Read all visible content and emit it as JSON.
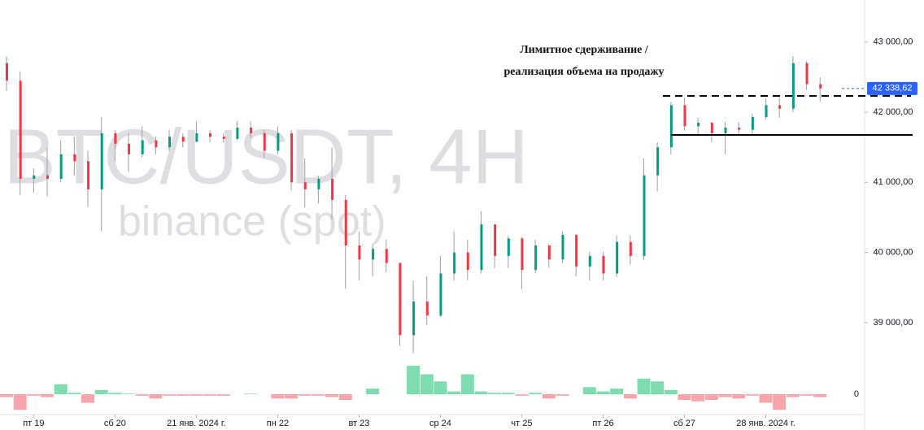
{
  "chart_data": {
    "type": "candlestick",
    "watermark": {
      "symbol": "BTC/USDT, 4H",
      "exchange": "binance (spot)"
    },
    "annotation": [
      "Лимитное сдерживание /",
      "реализация объема на продажу"
    ],
    "up_color": "#089981",
    "down_color": "#f23645",
    "delta_up_color": "#7fdcb0",
    "delta_down_color": "#f7a4ab",
    "open": [
      42700,
      42450,
      41050,
      41100,
      41050,
      41400,
      41300,
      40900,
      41700,
      41550,
      41400,
      41600,
      41500,
      41650,
      41580,
      41700,
      41650,
      41620,
      41780,
      41700,
      41450,
      41700,
      41000,
      40900,
      41050,
      40750,
      40100,
      39900,
      40050,
      39850,
      38820,
      39300,
      39100,
      39700,
      40000,
      39750,
      40400,
      39950,
      40200,
      39750,
      40100,
      39900,
      40250,
      39800,
      39950,
      39700,
      40150,
      39950,
      41100,
      41500,
      42100,
      41800,
      41850,
      41700,
      41780,
      41750,
      41930,
      42100,
      42050,
      42700,
      42400
    ],
    "high": [
      42800,
      42580,
      41200,
      41500,
      41600,
      41650,
      41450,
      41930,
      41750,
      41700,
      41800,
      41650,
      41750,
      41700,
      41870,
      41750,
      41700,
      41870,
      41870,
      41750,
      41800,
      41750,
      41340,
      41100,
      41500,
      40820,
      40300,
      40120,
      40180,
      39860,
      39600,
      39660,
      39950,
      40300,
      40180,
      40590,
      40400,
      40240,
      40220,
      40180,
      40120,
      40300,
      40260,
      40010,
      40010,
      40240,
      40240,
      41340,
      41570,
      42150,
      42200,
      41920,
      41860,
      41860,
      41860,
      41980,
      42200,
      42200,
      42800,
      42730,
      42500
    ],
    "low": [
      42300,
      40820,
      40850,
      40800,
      41000,
      41100,
      40650,
      40300,
      41300,
      41150,
      41350,
      41400,
      41450,
      41500,
      41570,
      41570,
      41570,
      41600,
      41630,
      41350,
      41400,
      40880,
      40640,
      40700,
      40470,
      39480,
      39600,
      39660,
      39720,
      38670,
      38560,
      38960,
      39080,
      39600,
      39600,
      39700,
      39780,
      39780,
      39480,
      39700,
      39780,
      39850,
      39660,
      39600,
      39600,
      39650,
      39830,
      39890,
      40870,
      41400,
      41740,
      41680,
      41570,
      41400,
      41680,
      41680,
      41900,
      41920,
      42000,
      42320,
      42150
    ],
    "close": [
      42450,
      41050,
      41100,
      41050,
      41400,
      41300,
      40900,
      41700,
      41550,
      41400,
      41600,
      41500,
      41650,
      41580,
      41700,
      41650,
      41620,
      41780,
      41700,
      41450,
      41700,
      41000,
      40900,
      41050,
      40750,
      40100,
      39900,
      40050,
      39850,
      38820,
      39300,
      39100,
      39700,
      40000,
      39750,
      40400,
      39950,
      40200,
      39750,
      40100,
      39900,
      40250,
      39800,
      39950,
      39700,
      40150,
      39950,
      41100,
      41500,
      42100,
      41800,
      41850,
      41700,
      41780,
      41750,
      41930,
      42100,
      42050,
      42700,
      42400,
      42338.62
    ],
    "delta": [
      -0.1,
      -0.55,
      -0.05,
      -0.1,
      0.35,
      0.05,
      -0.3,
      0.15,
      0.05,
      0.02,
      -0.05,
      -0.15,
      -0.05,
      -0.05,
      -0.05,
      -0.05,
      -0.05,
      0,
      0.02,
      0,
      -0.15,
      -0.15,
      -0.05,
      -0.05,
      -0.1,
      -0.2,
      0,
      0.2,
      0,
      0,
      1.0,
      0.7,
      0.45,
      0.1,
      0.7,
      0.1,
      0.05,
      0.05,
      -0.05,
      0.05,
      -0.15,
      -0.05,
      0,
      0.25,
      0.1,
      0.2,
      -0.15,
      0.55,
      0.45,
      0.15,
      -0.2,
      -0.25,
      -0.2,
      -0.1,
      -0.15,
      -0.05,
      -0.3,
      -0.55,
      -0.1,
      -0.05,
      -0.1
    ],
    "ylim": [
      38500,
      43600
    ],
    "yticks": [
      {
        "value": 43000,
        "label": "43 000,00"
      },
      {
        "value": 42000,
        "label": "42 000,00"
      },
      {
        "value": 41000,
        "label": "41 000,00"
      },
      {
        "value": 40000,
        "label": "40 000,00"
      },
      {
        "value": 39000,
        "label": "39 000,00"
      }
    ],
    "delta_ylim": [
      -0.6,
      1.0
    ],
    "delta_yticks": [
      0
    ],
    "xticks": [
      {
        "value": 2,
        "label": "пт 19"
      },
      {
        "value": 8,
        "label": "сб 20"
      },
      {
        "value": 14,
        "label": "21 янв. 2024 г."
      },
      {
        "value": 20,
        "label": "пн 22"
      },
      {
        "value": 26,
        "label": "вт 23"
      },
      {
        "value": 32,
        "label": "ср 24"
      },
      {
        "value": 38,
        "label": "чт 25"
      },
      {
        "value": 44,
        "label": "пт 26"
      },
      {
        "value": 50,
        "label": "сб 27"
      },
      {
        "value": 56,
        "label": "28 янв. 2024 г."
      }
    ],
    "last_price": {
      "value": 42338.62,
      "label": "42 338,62"
    },
    "levels": [
      {
        "value": 42232,
        "style": "dashed"
      },
      {
        "value": 41676,
        "style": "solid"
      }
    ]
  }
}
